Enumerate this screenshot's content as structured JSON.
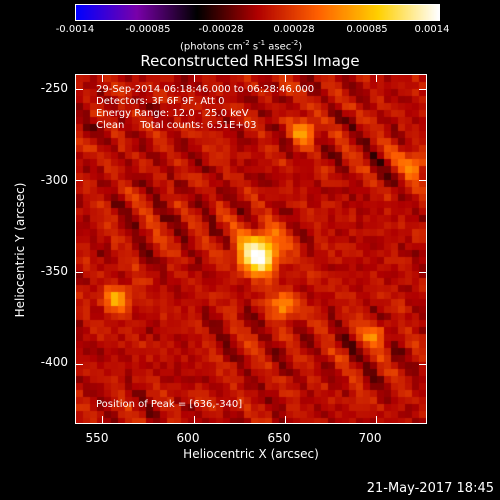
{
  "colorbar": {
    "tick_labels": [
      "-0.0014",
      "-0.00085",
      "-0.00028",
      "0.00028",
      "0.00085",
      "0.0014"
    ],
    "units_main": "(photons cm",
    "units_sup1": "-2",
    "units_mid1": " s",
    "units_sup2": "-1",
    "units_mid2": " asec",
    "units_sup3": "-2",
    "units_end": ")",
    "colors": [
      "#0000ff",
      "#7a00aa",
      "#000000",
      "#b00000",
      "#ff6000",
      "#ffd000",
      "#ffffff"
    ]
  },
  "title": "Reconstructed RHESSI Image",
  "info_lines": [
    "29-Sep-2014 06:18:46.000 to 06:28:46.000",
    "Detectors: 3F 6F 9F, Att 0",
    "Energy Range: 12.0 - 25.0 keV",
    "Clean     Total counts: 6.51E+03"
  ],
  "peak_label": "Position of Peak = [636,-340]",
  "xlabel": "Heliocentric X (arcsec)",
  "ylabel": "Heliocentric Y (arcsec)",
  "footer_date": "21-May-2017 18:45",
  "chart_data": {
    "type": "heatmap",
    "title": "Reconstructed RHESSI Image",
    "xlabel": "Heliocentric X (arcsec)",
    "ylabel": "Heliocentric Y (arcsec)",
    "xlim": [
      535,
      728
    ],
    "ylim": [
      -433,
      -242
    ],
    "x_ticks": [
      550,
      600,
      650,
      700
    ],
    "y_ticks": [
      -250,
      -300,
      -350,
      -400
    ],
    "value_range": [
      -0.0014,
      0.0014
    ],
    "peak": [
      636,
      -340
    ],
    "sources": [
      {
        "x": 636,
        "y": -340,
        "amp": 1.0,
        "w": 8
      },
      {
        "x": 558,
        "y": -365,
        "amp": 0.55,
        "w": 5
      },
      {
        "x": 661,
        "y": -273,
        "amp": 0.5,
        "w": 5
      },
      {
        "x": 650,
        "y": -368,
        "amp": 0.45,
        "w": 5
      },
      {
        "x": 722,
        "y": -290,
        "amp": 0.45,
        "w": 5
      },
      {
        "x": 700,
        "y": -385,
        "amp": 0.35,
        "w": 5
      }
    ]
  }
}
